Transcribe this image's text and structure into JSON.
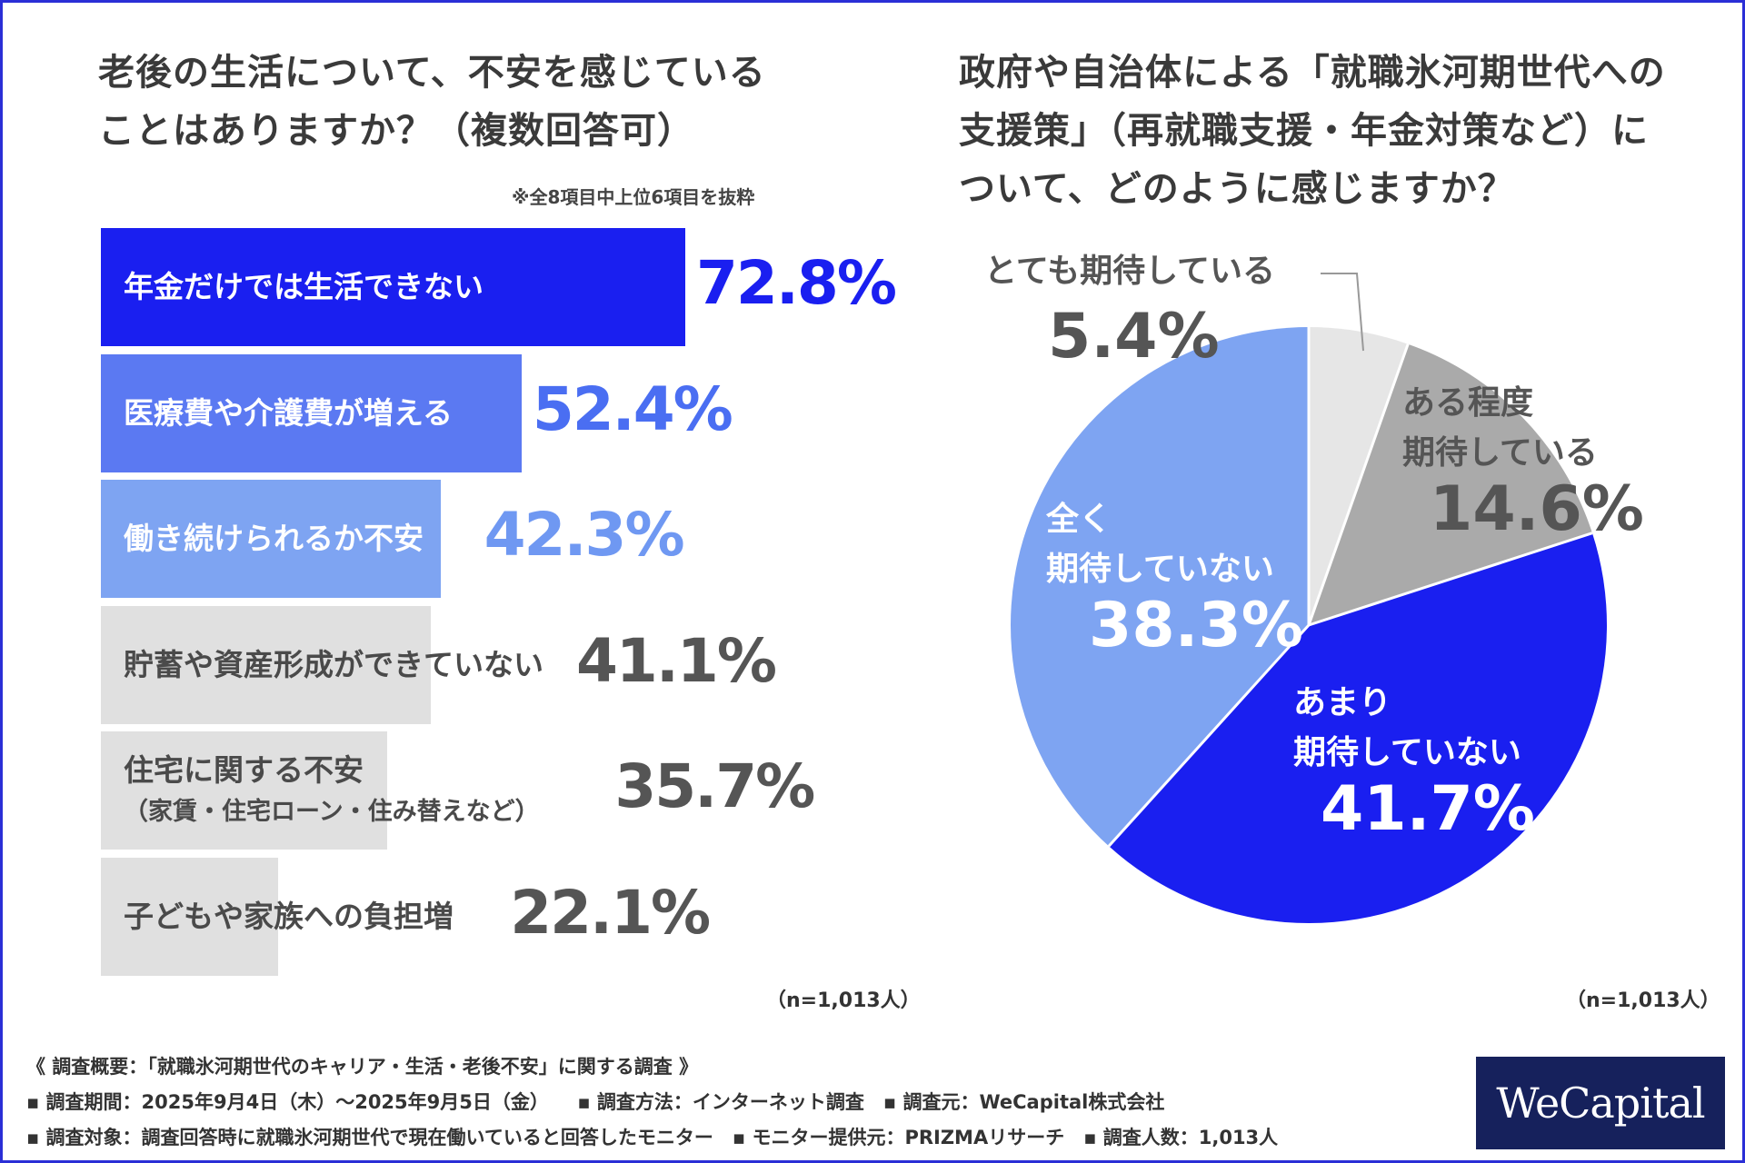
{
  "left_chart": {
    "title_line1": "老後の生活について、不安を感じている",
    "title_line2": "ことはありますか？（複数回答可）",
    "note": "※全8項目中上位6項目を抜粋",
    "n_label": "（n=1,013人）"
  },
  "right_chart": {
    "title_line1": "政府や自治体による「就職氷河期世代への",
    "title_line2": "支援策」（再就職支援・年金対策など）に",
    "title_line3": "ついて、どのように感じますか？",
    "n_label": "（n=1,013人）"
  },
  "chart_data": [
    {
      "type": "bar",
      "orientation": "horizontal",
      "categories": [
        "年金だけでは生活できない",
        "医療費や介護費が増える",
        "働き続けられるか不安",
        "貯蓄や資産形成ができていない",
        "住宅に関する不安（家賃・住宅ローン・住み替えなど）",
        "子どもや家族への負担増"
      ],
      "category_lines": [
        [
          "年金だけでは生活できない"
        ],
        [
          "医療費や介護費が増える"
        ],
        [
          "働き続けられるか不安"
        ],
        [
          "貯蓄や資産形成ができていない"
        ],
        [
          "住宅に関する不安",
          "（家賃・住宅ローン・住み替えなど）"
        ],
        [
          "子どもや家族への負担増"
        ]
      ],
      "values": [
        72.8,
        52.4,
        42.3,
        41.1,
        35.7,
        22.1
      ],
      "value_labels": [
        "72.8%",
        "52.4%",
        "42.3%",
        "41.1%",
        "35.7%",
        "22.1%"
      ],
      "bar_colors": [
        "#1a1ff0",
        "#5b79f2",
        "#7ea4f2",
        "#e0e0e0",
        "#e0e0e0",
        "#e0e0e0"
      ],
      "label_colors": [
        "#ffffff",
        "#ffffff",
        "#ffffff",
        "#4a4a4a",
        "#4a4a4a",
        "#4a4a4a"
      ],
      "value_colors": [
        "#1a1ff0",
        "#4a6ef2",
        "#6f98f2",
        "#555555",
        "#555555",
        "#555555"
      ]
    },
    {
      "type": "pie",
      "slices": [
        {
          "label_lines": [
            "とても期待している"
          ],
          "value": 5.4,
          "value_label": "5.4%",
          "color": "#e6e6e6",
          "text_color": "#555555"
        },
        {
          "label_lines": [
            "ある程度",
            "期待している"
          ],
          "value": 14.6,
          "value_label": "14.6%",
          "color": "#aaaaaa",
          "text_color": "#555555"
        },
        {
          "label_lines": [
            "あまり",
            "期待していない"
          ],
          "value": 41.7,
          "value_label": "41.7%",
          "color": "#1a1ff0",
          "text_color": "#ffffff"
        },
        {
          "label_lines": [
            "全く",
            "期待していない"
          ],
          "value": 38.3,
          "value_label": "38.3%",
          "color": "#7ea4f2",
          "text_color": "#ffffff"
        }
      ]
    }
  ],
  "footer": {
    "line1": "《 調査概要：「就職氷河期世代のキャリア・生活・老後不安」に関する調査 》",
    "line2": "▪ 調査期間：2025年9月4日（木）〜2025年9月5日（金）　　▪ 調査方法：インターネット調査　▪ 調査元：WeCapital株式会社",
    "line3": "▪ 調査対象：調査回答時に就職氷河期世代で現在働いていると回答したモニター　▪ モニター提供元：PRIZMAリサーチ　▪ 調査人数：1,013人"
  },
  "logo": {
    "text": "WeCapital"
  }
}
